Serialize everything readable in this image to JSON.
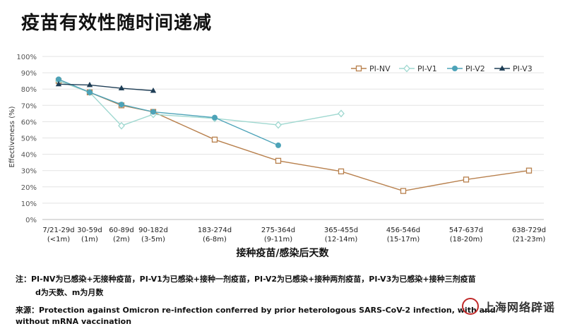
{
  "title": "疫苗有效性随时间递减",
  "chart_data": {
    "type": "line",
    "ylabel": "Effectiveness (%)",
    "xlabel": "接种疫苗/感染后天数",
    "ylim": [
      0,
      100
    ],
    "yticks": [
      "0%",
      "10%",
      "20%",
      "30%",
      "40%",
      "50%",
      "60%",
      "70%",
      "80%",
      "90%",
      "100%"
    ],
    "legend_position": "top-right",
    "categories": [
      {
        "line1": "7/21-29d",
        "line2": "(<1m)"
      },
      {
        "line1": "30-59d",
        "line2": "(1m)"
      },
      {
        "line1": "60-89d",
        "line2": "(2m)"
      },
      {
        "line1": "90-182d",
        "line2": "(3-5m)"
      },
      {
        "line1": "183-274d",
        "line2": "(6-8m)"
      },
      {
        "line1": "275-364d",
        "line2": "(9-11m)"
      },
      {
        "line1": "365-455d",
        "line2": "(12-14m)"
      },
      {
        "line1": "456-546d",
        "line2": "(15-17m)"
      },
      {
        "line1": "547-637d",
        "line2": "(18-20m)"
      },
      {
        "line1": "638-729d",
        "line2": "(21-23m)"
      }
    ],
    "series": [
      {
        "name": "PI-NV",
        "color": "#b8804d",
        "marker": "square-open",
        "values": [
          85,
          78,
          70,
          66,
          49,
          36,
          29.5,
          17.5,
          24.5,
          30
        ]
      },
      {
        "name": "PI-V1",
        "color": "#9fd8d0",
        "marker": "diamond-open",
        "values": [
          85,
          78,
          57.5,
          64.5,
          62,
          58,
          65,
          null,
          null,
          null
        ]
      },
      {
        "name": "PI-V2",
        "color": "#4da3b8",
        "marker": "circle",
        "values": [
          86,
          78,
          70.5,
          66,
          62.5,
          45.5,
          null,
          null,
          null,
          null
        ]
      },
      {
        "name": "PI-V3",
        "color": "#1f3e56",
        "marker": "triangle",
        "values": [
          83,
          82.5,
          80.5,
          79,
          null,
          null,
          null,
          null,
          null,
          null
        ]
      }
    ]
  },
  "note_line1": "注：PI-NV为已感染+无接种疫苗，PI-V1为已感染+接种一剂疫苗，PI-V2为已感染+接种两剂疫苗，PI-V3为已感染+接种三剂疫苗",
  "note_line2": "d为天数、m为月数",
  "source_label": "来源：",
  "source_text": "Protection against Omicron re-infection conferred by prior heterologous SARS-CoV-2 infection, with and without mRNA vaccination",
  "brand": "上海网络辟谣"
}
